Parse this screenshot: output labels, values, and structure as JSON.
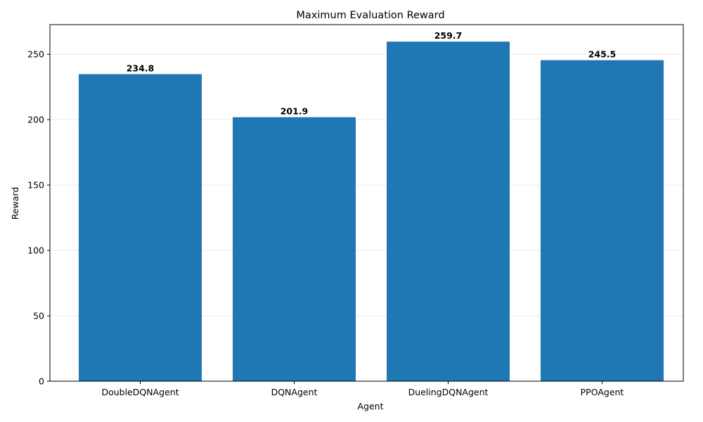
{
  "chart_data": {
    "type": "bar",
    "title": "Maximum Evaluation Reward",
    "xlabel": "Agent",
    "ylabel": "Reward",
    "categories": [
      "DoubleDQNAgent",
      "DQNAgent",
      "DuelingDQNAgent",
      "PPOAgent"
    ],
    "values": [
      234.8,
      201.9,
      259.7,
      245.5
    ],
    "data_labels": [
      "234.8",
      "201.9",
      "259.7",
      "245.5"
    ],
    "ylim": [
      0,
      272.7
    ],
    "yticks": [
      0,
      50,
      100,
      150,
      200,
      250
    ],
    "ytick_labels": [
      "0",
      "50",
      "100",
      "150",
      "200",
      "250"
    ],
    "grid": "y-axis, light",
    "legend": "none",
    "colors": {
      "bar": "#1f77b4",
      "grid": "#e6e6e6",
      "axis": "#000000"
    }
  }
}
